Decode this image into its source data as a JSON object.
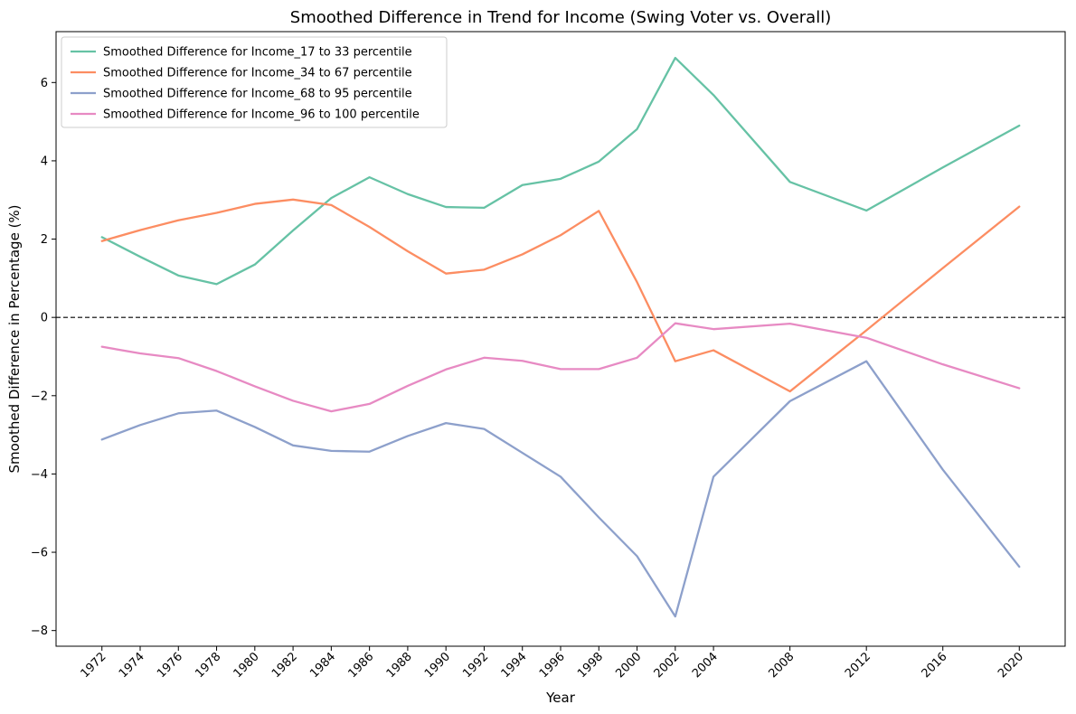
{
  "chart_data": {
    "type": "line",
    "title": "Smoothed Difference in Trend for Income (Swing Voter vs. Overall)",
    "xlabel": "Year",
    "ylabel": "Smoothed Difference in Percentage (%)",
    "x": [
      1972,
      1974,
      1976,
      1978,
      1980,
      1982,
      1984,
      1986,
      1988,
      1990,
      1992,
      1994,
      1996,
      1998,
      2000,
      2002,
      2004,
      2008,
      2012,
      2016,
      2020
    ],
    "x_ticks": [
      1972,
      1974,
      1976,
      1978,
      1980,
      1982,
      1984,
      1986,
      1988,
      1990,
      1992,
      1994,
      1996,
      1998,
      2000,
      2002,
      2004,
      2008,
      2012,
      2016,
      2020
    ],
    "xlim": [
      1969.6,
      2022.4
    ],
    "ylim": [
      -8.4,
      7.3
    ],
    "y_ticks": [
      -8,
      -6,
      -4,
      -2,
      0,
      2,
      4,
      6
    ],
    "reference_line": {
      "y": 0,
      "style": "dashed",
      "color": "#000000"
    },
    "grid": false,
    "legend_position": "upper-left",
    "series": [
      {
        "name": "Smoothed Difference for Income_17 to 33 percentile",
        "color": "#66c2a5",
        "values": [
          2.05,
          1.55,
          1.07,
          0.85,
          1.35,
          2.22,
          3.05,
          3.58,
          3.15,
          2.82,
          2.8,
          3.38,
          3.54,
          3.98,
          4.81,
          6.63,
          5.68,
          3.46,
          2.73,
          3.83,
          4.9
        ]
      },
      {
        "name": "Smoothed Difference for Income_34 to 67 percentile",
        "color": "#fc8d62",
        "values": [
          1.95,
          2.23,
          2.48,
          2.67,
          2.9,
          3.01,
          2.87,
          2.31,
          1.69,
          1.12,
          1.22,
          1.61,
          2.1,
          2.72,
          0.9,
          -1.12,
          -0.84,
          -1.89,
          -0.33,
          1.26,
          2.83
        ]
      },
      {
        "name": "Smoothed Difference for Income_68 to 95 percentile",
        "color": "#8da0cb",
        "values": [
          -3.12,
          -2.75,
          -2.45,
          -2.38,
          -2.8,
          -3.27,
          -3.41,
          -3.43,
          -3.03,
          -2.7,
          -2.85,
          -3.46,
          -4.07,
          -5.11,
          -6.1,
          -7.64,
          -4.07,
          -2.14,
          -1.12,
          -3.89,
          -6.37
        ]
      },
      {
        "name": "Smoothed Difference for Income_96 to 100 percentile",
        "color": "#e78ac3",
        "values": [
          -0.75,
          -0.92,
          -1.04,
          -1.37,
          -1.76,
          -2.13,
          -2.4,
          -2.21,
          -1.75,
          -1.33,
          -1.03,
          -1.11,
          -1.32,
          -1.32,
          -1.03,
          -0.15,
          -0.3,
          -0.16,
          -0.52,
          -1.2,
          -1.81
        ]
      }
    ]
  }
}
